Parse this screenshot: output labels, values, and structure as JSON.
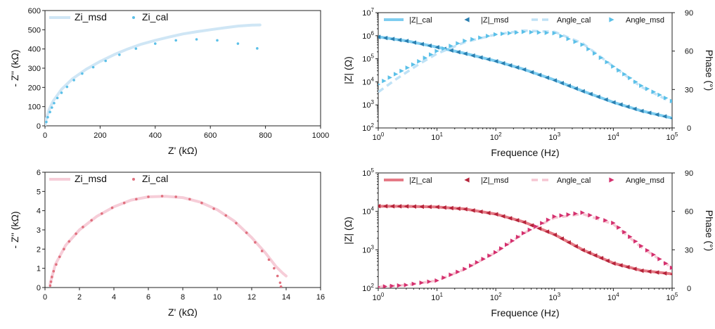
{
  "chart_data": [
    {
      "id": "nyquist_top",
      "type": "scatter",
      "title": "",
      "xlabel": "Z' (kΩ)",
      "ylabel": "- Z'' (kΩ)",
      "xlim": [
        0,
        1000
      ],
      "ylim": [
        0,
        600
      ],
      "xticks": [
        "0",
        "200",
        "400",
        "600",
        "800",
        "1000"
      ],
      "yticks": [
        "0",
        "100",
        "200",
        "300",
        "400",
        "500",
        "600"
      ],
      "legend": {
        "placement": "top-left",
        "entries": [
          "Zi_msd",
          "Zi_cal"
        ]
      },
      "series": [
        {
          "name": "Zi_msd",
          "style": "line",
          "color": "#cfe6f5",
          "x": [
            0,
            5,
            15,
            30,
            60,
            100,
            150,
            200,
            250,
            300,
            350,
            400,
            450,
            500,
            550,
            600,
            650,
            700,
            750,
            780
          ],
          "y": [
            0,
            40,
            85,
            130,
            190,
            245,
            295,
            335,
            370,
            400,
            425,
            445,
            462,
            478,
            490,
            500,
            510,
            519,
            524,
            525
          ]
        },
        {
          "name": "Zi_cal",
          "style": "dots",
          "color": "#5bc0e8",
          "x": [
            5,
            10,
            18,
            25,
            33,
            45,
            60,
            80,
            105,
            135,
            175,
            220,
            270,
            330,
            400,
            475,
            550,
            625,
            700,
            770
          ],
          "y": [
            20,
            45,
            72,
            95,
            118,
            145,
            172,
            203,
            238,
            272,
            305,
            338,
            370,
            402,
            428,
            445,
            450,
            445,
            428,
            403
          ]
        }
      ]
    },
    {
      "id": "bode_top",
      "type": "line",
      "title": "",
      "xlabel": "Frequence (Hz)",
      "ylabel": "|Z| (Ω)",
      "y2label": "Phase (°)",
      "xscale": "log",
      "yscale": "log",
      "xlim": [
        1,
        100000
      ],
      "ylim": [
        100,
        10000000
      ],
      "y2lim": [
        0,
        90
      ],
      "xticks": [
        "10⁰",
        "10¹",
        "10²",
        "10³",
        "10⁴",
        "10⁵"
      ],
      "yticks": [
        "10²",
        "10³",
        "10⁴",
        "10⁵",
        "10⁶",
        "10⁷"
      ],
      "y2ticks": [
        "0",
        "30",
        "60",
        "90"
      ],
      "legend": {
        "placement": "top",
        "entries": [
          "|Z|_cal",
          "|Z|_msd",
          "Angle_cal",
          "Angle_msd"
        ]
      },
      "series": [
        {
          "name": "|Z|_cal",
          "axis": "left",
          "style": "thick-line",
          "color": "#7ecdf0",
          "x": [
            1,
            3,
            10,
            30,
            100,
            300,
            1000,
            3000,
            10000,
            30000,
            100000
          ],
          "y": [
            900000,
            600000,
            320000,
            170000,
            80000,
            35000,
            12000,
            4000,
            1300,
            550,
            270
          ]
        },
        {
          "name": "|Z|_msd",
          "axis": "left",
          "style": "left-triangles",
          "color": "#2a7fb0",
          "x": [
            1,
            3,
            10,
            30,
            100,
            300,
            1000,
            3000,
            10000,
            30000,
            100000
          ],
          "y": [
            880000,
            590000,
            315000,
            165000,
            78000,
            34000,
            11500,
            3900,
            1280,
            540,
            265
          ]
        },
        {
          "name": "Angle_cal",
          "axis": "right",
          "style": "dashed-line",
          "color": "#bfe2f6",
          "x": [
            1,
            2,
            5,
            10,
            30,
            100,
            300,
            1000,
            3000,
            10000,
            30000,
            100000
          ],
          "y": [
            28,
            38,
            50,
            58,
            67,
            73,
            76,
            75,
            66,
            48,
            32,
            20
          ]
        },
        {
          "name": "Angle_msd",
          "axis": "right",
          "style": "right-triangles",
          "color": "#5bc0e8",
          "x": [
            1,
            2,
            5,
            10,
            30,
            100,
            300,
            1000,
            3000,
            10000,
            30000,
            100000
          ],
          "y": [
            34,
            42,
            52,
            60,
            68,
            73,
            75,
            74,
            65,
            48,
            33,
            21
          ]
        }
      ]
    },
    {
      "id": "nyquist_bottom",
      "type": "scatter",
      "title": "",
      "xlabel": "Z' (kΩ)",
      "ylabel": "- Z'' (kΩ)",
      "xlim": [
        0,
        16
      ],
      "ylim": [
        0,
        6
      ],
      "xticks": [
        "0",
        "2",
        "4",
        "6",
        "8",
        "10",
        "12",
        "14",
        "16"
      ],
      "yticks": [
        "0",
        "1",
        "2",
        "3",
        "4",
        "5",
        "6"
      ],
      "legend": {
        "placement": "top-left",
        "entries": [
          "Zi_msd",
          "Zi_cal"
        ]
      },
      "series": [
        {
          "name": "Zi_msd",
          "style": "line",
          "color": "#f6cdd8",
          "x": [
            0.3,
            0.6,
            1.2,
            2.0,
            3.0,
            4.0,
            5.0,
            6.0,
            7.0,
            8.0,
            9.0,
            10.0,
            11.0,
            12.0,
            12.8,
            13.4,
            13.8,
            14.0
          ],
          "y": [
            0.2,
            1.2,
            2.2,
            3.0,
            3.7,
            4.2,
            4.55,
            4.72,
            4.75,
            4.68,
            4.45,
            4.05,
            3.45,
            2.6,
            1.8,
            1.1,
            0.75,
            0.6
          ]
        },
        {
          "name": "Zi_cal",
          "style": "dots",
          "color": "#e0707e",
          "x": [
            0.3,
            0.35,
            0.4,
            0.5,
            0.65,
            0.85,
            1.1,
            1.4,
            1.8,
            2.2,
            2.7,
            3.3,
            3.9,
            4.6,
            5.3,
            6.0,
            6.8,
            7.6,
            8.4,
            9.1,
            9.8,
            10.5,
            11.1,
            11.7,
            12.2,
            12.6,
            13.0,
            13.3,
            13.5,
            13.65,
            13.7
          ],
          "y": [
            0.1,
            0.3,
            0.55,
            0.85,
            1.2,
            1.6,
            2.0,
            2.4,
            2.8,
            3.15,
            3.5,
            3.85,
            4.15,
            4.4,
            4.6,
            4.72,
            4.76,
            4.72,
            4.6,
            4.4,
            4.1,
            3.75,
            3.35,
            2.85,
            2.35,
            1.9,
            1.45,
            1.0,
            0.6,
            0.25,
            0.05
          ]
        }
      ]
    },
    {
      "id": "bode_bottom",
      "type": "line",
      "title": "",
      "xlabel": "Frequence (Hz)",
      "ylabel": "|Z| (Ω)",
      "y2label": "Phase (°)",
      "xscale": "log",
      "yscale": "log",
      "xlim": [
        1,
        100000
      ],
      "ylim": [
        100,
        100000
      ],
      "y2lim": [
        0,
        90
      ],
      "xticks": [
        "10⁰",
        "10¹",
        "10²",
        "10³",
        "10⁴",
        "10⁵"
      ],
      "yticks": [
        "10²",
        "10³",
        "10⁴",
        "10⁵"
      ],
      "y2ticks": [
        "0",
        "30",
        "60",
        "90"
      ],
      "legend": {
        "placement": "top",
        "entries": [
          "|Z|_cal",
          "|Z|_msd",
          "Angle_cal",
          "Angle_msd"
        ]
      },
      "series": [
        {
          "name": "|Z|_cal",
          "axis": "left",
          "style": "thick-line",
          "color": "#e57a86",
          "x": [
            1,
            3,
            10,
            30,
            100,
            300,
            1000,
            3000,
            10000,
            30000,
            100000
          ],
          "y": [
            13600,
            13500,
            13000,
            11500,
            8500,
            5300,
            2500,
            1000,
            450,
            290,
            235
          ]
        },
        {
          "name": "|Z|_msd",
          "axis": "left",
          "style": "left-triangles",
          "color": "#b5243a",
          "x": [
            1,
            3,
            10,
            30,
            100,
            300,
            1000,
            3000,
            10000,
            30000,
            100000
          ],
          "y": [
            13700,
            13500,
            13000,
            11400,
            8400,
            5200,
            2450,
            980,
            440,
            285,
            232
          ]
        },
        {
          "name": "Angle_cal",
          "axis": "right",
          "style": "dashed-line",
          "color": "#f6c6d2",
          "x": [
            1,
            3,
            10,
            30,
            100,
            300,
            1000,
            3000,
            10000,
            30000,
            100000
          ],
          "y": [
            1,
            2.5,
            6,
            15,
            28,
            43,
            55,
            58,
            50,
            32,
            16
          ]
        },
        {
          "name": "Angle_msd",
          "axis": "right",
          "style": "right-triangles",
          "color": "#d4306e",
          "x": [
            1,
            3,
            10,
            30,
            100,
            300,
            1000,
            3000,
            10000,
            30000,
            100000
          ],
          "y": [
            1,
            2.5,
            6,
            15,
            28,
            43,
            56,
            59,
            51,
            33,
            16
          ]
        }
      ]
    }
  ]
}
